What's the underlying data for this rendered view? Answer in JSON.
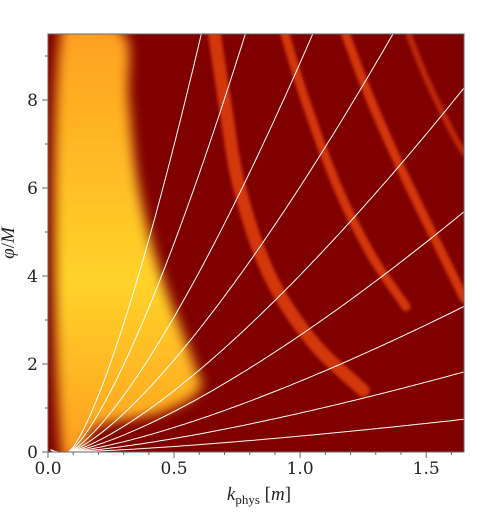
{
  "chart_data": {
    "type": "heatmap",
    "xlim": [
      0,
      1.65
    ],
    "ylim": [
      0,
      9.5
    ],
    "x_ticks": [
      {
        "value": 0.0,
        "label": "0.0"
      },
      {
        "value": 0.5,
        "label": "0.5"
      },
      {
        "value": 1.0,
        "label": "1.0"
      },
      {
        "value": 1.5,
        "label": "1.5"
      }
    ],
    "y_ticks": [
      {
        "value": 0,
        "label": "0"
      },
      {
        "value": 2,
        "label": "2"
      },
      {
        "value": 4,
        "label": "4"
      },
      {
        "value": 6,
        "label": "6"
      },
      {
        "value": 8,
        "label": "8"
      }
    ],
    "xlabel": {
      "main": "k",
      "sub": "phys",
      "unit_open": " [",
      "unit": "m",
      "unit_close": "]"
    },
    "ylabel": {
      "var": "φ",
      "slash": "/",
      "den": "M"
    },
    "colors": {
      "background": "#800000",
      "band": "#d83a10",
      "bright_low": "#ff9a1f",
      "bright_high": "#ffd32a",
      "curve": "#ffffff",
      "frame": "#666666"
    },
    "bright_region": {
      "description_points": [
        [
          0.05,
          9.5
        ],
        [
          0.3,
          9.5
        ],
        [
          0.32,
          8
        ],
        [
          0.36,
          6
        ],
        [
          0.45,
          4
        ],
        [
          0.58,
          2
        ],
        [
          0.6,
          1.4
        ],
        [
          0.45,
          0.9
        ],
        [
          0.2,
          0.6
        ],
        [
          0.05,
          0.2
        ]
      ]
    },
    "bands": [
      {
        "points": [
          [
            0.66,
            9.5
          ],
          [
            0.7,
            8
          ],
          [
            0.76,
            6
          ],
          [
            0.88,
            4
          ],
          [
            1.05,
            2.5
          ],
          [
            1.25,
            1.4
          ]
        ]
      },
      {
        "points": [
          [
            0.94,
            9.5
          ],
          [
            1.02,
            8
          ],
          [
            1.15,
            6
          ],
          [
            1.28,
            4.5
          ],
          [
            1.42,
            3.3
          ]
        ]
      },
      {
        "points": [
          [
            1.18,
            9.5
          ],
          [
            1.28,
            8
          ],
          [
            1.42,
            6.2
          ],
          [
            1.65,
            3.5
          ]
        ]
      },
      {
        "points": [
          [
            1.43,
            9.5
          ],
          [
            1.5,
            8.5
          ],
          [
            1.6,
            7.3
          ],
          [
            1.65,
            6.8
          ]
        ]
      }
    ],
    "curves": [
      {
        "slope": 25.0
      },
      {
        "slope": 17.0
      },
      {
        "slope": 11.0
      },
      {
        "slope": 7.5
      },
      {
        "slope": 5.0
      },
      {
        "slope": 3.3
      },
      {
        "slope": 2.0
      },
      {
        "slope": 1.1
      },
      {
        "slope": 0.45
      }
    ],
    "curve_origin_k": 0.08
  }
}
